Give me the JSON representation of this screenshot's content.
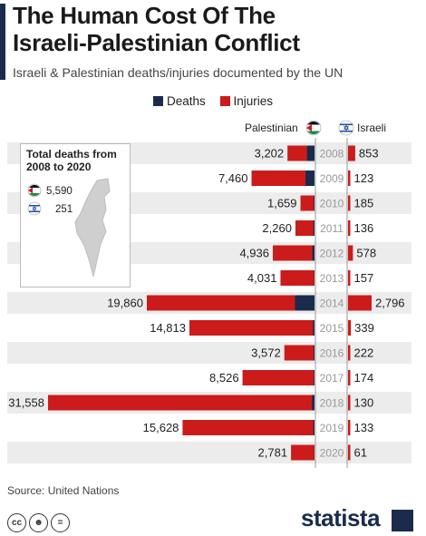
{
  "header": {
    "title_line1": "The Human Cost Of The",
    "title_line2": "Israeli-Palestinian Conflict",
    "subtitle": "Israeli & Palestinian deaths/injuries documented by the UN"
  },
  "legend": {
    "deaths": "Deaths",
    "injuries": "Injuries"
  },
  "columns": {
    "left": "Palestinian",
    "right": "Israeli"
  },
  "inset": {
    "title_line1": "Total deaths from",
    "title_line2": "2008 to 2020",
    "palestinian_total": "5,590",
    "israeli_total": "251"
  },
  "footer": {
    "source": "Source: United Nations",
    "brand": "statista"
  },
  "colors": {
    "deaths": "#1a2b4c",
    "injuries": "#cc1b1b",
    "row_band": "#ececec",
    "year_text": "#999999"
  },
  "icons": [
    "palestinian-flag-icon",
    "israeli-flag-icon",
    "cc-icon",
    "by-icon",
    "nd-icon",
    "statista-logo-icon"
  ],
  "chart_data": {
    "type": "bar",
    "orientation": "horizontal-butterfly",
    "categories": [
      "2008",
      "2009",
      "2010",
      "2011",
      "2012",
      "2013",
      "2014",
      "2015",
      "2016",
      "2017",
      "2018",
      "2019",
      "2020"
    ],
    "series": [
      {
        "name": "Palestinian",
        "label": "Palestinian",
        "values": [
          3202,
          7460,
          1659,
          2260,
          4936,
          4031,
          19860,
          14813,
          3572,
          8526,
          31558,
          15628,
          2781
        ],
        "labels": [
          "3,202",
          "7,460",
          "1,659",
          "2,260",
          "4,936",
          "4,031",
          "19,860",
          "14,813",
          "3,572",
          "8,526",
          "31,558",
          "15,628",
          "2,781"
        ],
        "deaths": [
          887,
          1066,
          82,
          124,
          260,
          39,
          2314,
          174,
          108,
          77,
          300,
          135,
          30
        ]
      },
      {
        "name": "Israeli",
        "label": "Israeli",
        "values": [
          853,
          123,
          185,
          136,
          578,
          157,
          2796,
          339,
          222,
          174,
          130,
          133,
          61
        ],
        "labels": [
          "853",
          "123",
          "185",
          "136",
          "578",
          "157",
          "2,796",
          "339",
          "222",
          "174",
          "130",
          "133",
          "61"
        ]
      }
    ]
  }
}
